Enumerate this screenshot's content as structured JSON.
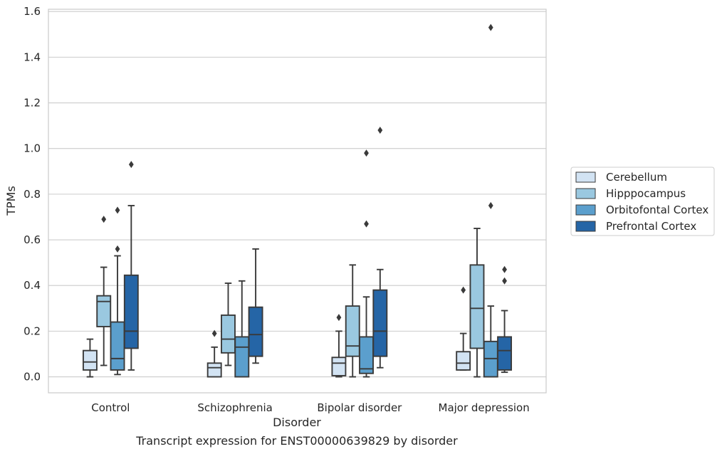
{
  "chart_data": {
    "type": "boxplot",
    "caption": "Transcript expression for ENST00000639829 by disorder",
    "xlabel": "Disorder",
    "ylabel": "TPMs",
    "ylim": [
      -0.07,
      1.61
    ],
    "yticks": [
      0.0,
      0.2,
      0.4,
      0.6,
      0.8,
      1.0,
      1.2,
      1.4,
      1.6
    ],
    "grid": true,
    "legend_position": "right",
    "categories": [
      "Control",
      "Schizophrenia",
      "Bipolar disorder",
      "Major depression"
    ],
    "series": [
      {
        "name": "Cerebellum",
        "color": "#d2e3f3",
        "boxes": [
          {
            "whislo": 0.0,
            "q1": 0.03,
            "med": 0.065,
            "q3": 0.115,
            "whishi": 0.165,
            "fliers": []
          },
          {
            "whislo": 0.0,
            "q1": 0.0,
            "med": 0.04,
            "q3": 0.06,
            "whishi": 0.13,
            "fliers": [
              0.19
            ]
          },
          {
            "whislo": 0.0,
            "q1": 0.005,
            "med": 0.06,
            "q3": 0.085,
            "whishi": 0.2,
            "fliers": [
              0.26
            ]
          },
          {
            "whislo": 0.03,
            "q1": 0.03,
            "med": 0.06,
            "q3": 0.11,
            "whishi": 0.19,
            "fliers": [
              0.38
            ]
          }
        ]
      },
      {
        "name": "Hipppocampus",
        "color": "#9ac8e0",
        "boxes": [
          {
            "whislo": 0.05,
            "q1": 0.22,
            "med": 0.33,
            "q3": 0.355,
            "whishi": 0.48,
            "fliers": [
              0.69
            ]
          },
          {
            "whislo": 0.05,
            "q1": 0.105,
            "med": 0.165,
            "q3": 0.27,
            "whishi": 0.41,
            "fliers": []
          },
          {
            "whislo": 0.0,
            "q1": 0.09,
            "med": 0.135,
            "q3": 0.31,
            "whishi": 0.49,
            "fliers": []
          },
          {
            "whislo": 0.0,
            "q1": 0.125,
            "med": 0.3,
            "q3": 0.49,
            "whishi": 0.65,
            "fliers": []
          }
        ]
      },
      {
        "name": "Orbitofontal Cortex",
        "color": "#5b9fcd",
        "boxes": [
          {
            "whislo": 0.01,
            "q1": 0.03,
            "med": 0.08,
            "q3": 0.24,
            "whishi": 0.53,
            "fliers": [
              0.56,
              0.73
            ]
          },
          {
            "whislo": 0.0,
            "q1": 0.0,
            "med": 0.13,
            "q3": 0.175,
            "whishi": 0.42,
            "fliers": []
          },
          {
            "whislo": 0.0,
            "q1": 0.015,
            "med": 0.035,
            "q3": 0.175,
            "whishi": 0.35,
            "fliers": [
              0.67,
              0.98
            ]
          },
          {
            "whislo": 0.0,
            "q1": 0.0,
            "med": 0.08,
            "q3": 0.155,
            "whishi": 0.31,
            "fliers": [
              0.75,
              1.53
            ]
          }
        ]
      },
      {
        "name": "Prefrontal Cortex",
        "color": "#2565a6",
        "boxes": [
          {
            "whislo": 0.03,
            "q1": 0.125,
            "med": 0.2,
            "q3": 0.445,
            "whishi": 0.75,
            "fliers": [
              0.93
            ]
          },
          {
            "whislo": 0.06,
            "q1": 0.09,
            "med": 0.185,
            "q3": 0.305,
            "whishi": 0.56,
            "fliers": []
          },
          {
            "whislo": 0.04,
            "q1": 0.09,
            "med": 0.2,
            "q3": 0.38,
            "whishi": 0.47,
            "fliers": [
              1.08
            ]
          },
          {
            "whislo": 0.02,
            "q1": 0.03,
            "med": 0.115,
            "q3": 0.175,
            "whishi": 0.29,
            "fliers": [
              0.42,
              0.47
            ]
          }
        ]
      }
    ]
  }
}
